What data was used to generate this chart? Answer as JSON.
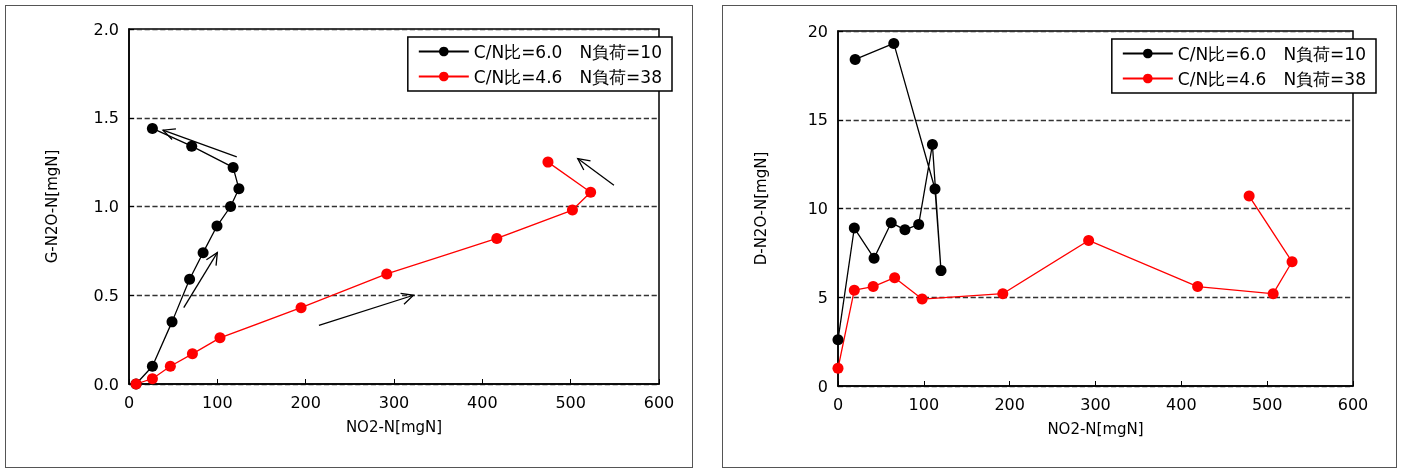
{
  "chart_data": [
    {
      "type": "line",
      "xlabel": "NO2-N[mgN]",
      "ylabel": "G-N2O-N[mgN]",
      "xlim": [
        0,
        600
      ],
      "xticks": [
        0,
        100,
        200,
        300,
        400,
        500,
        600
      ],
      "ylim": [
        0,
        2
      ],
      "yticks": [
        {
          "value": 0,
          "label": "0.0"
        },
        {
          "value": 0.5,
          "label": "0.5"
        },
        {
          "value": 1,
          "label": "1.0"
        },
        {
          "value": 1.5,
          "label": "1.5"
        },
        {
          "value": 2,
          "label": "2.0"
        }
      ],
      "grid": "y",
      "legend": "top right",
      "marker": "circle",
      "series": [
        {
          "name": "C/N比=6.0　N負荷=10",
          "color": "#000000",
          "x": [
            8,
            26.5,
            48.7,
            68.6,
            83.9,
            99.6,
            115,
            124.4,
            117.9,
            71,
            26.5
          ],
          "values": [
            0,
            0.1,
            0.35,
            0.59,
            0.74,
            0.89,
            1.0,
            1.1,
            1.22,
            1.34,
            1.44
          ]
        },
        {
          "name": "C/N比=4.6　N負荷=38",
          "color": "#ff0000",
          "x": [
            8,
            26.5,
            46.8,
            71.8,
            103,
            194.8,
            291.8,
            416.4,
            502,
            522.6,
            474.3
          ],
          "values": [
            0,
            0.03,
            0.1,
            0.17,
            0.26,
            0.43,
            0.62,
            0.82,
            0.98,
            1.08,
            1.25
          ]
        }
      ]
    },
    {
      "type": "line",
      "xlabel": "NO2-N[mgN]",
      "ylabel": "D-N2O-N[mgN]",
      "xlim": [
        0,
        600
      ],
      "xticks": [
        0,
        100,
        200,
        300,
        400,
        500,
        600
      ],
      "ylim": [
        0,
        20
      ],
      "yticks": [
        0,
        5,
        10,
        15,
        20
      ],
      "grid": "y",
      "legend": "top right",
      "marker": "circle",
      "series": [
        {
          "name": "C/N比=6.0　N負荷=10",
          "color": "#000000",
          "x": [
            0,
            19,
            42,
            62,
            78,
            94,
            110,
            120,
            113,
            65,
            20
          ],
          "values": [
            2.6,
            8.9,
            7.2,
            9.2,
            8.8,
            9.1,
            13.6,
            6.5,
            11.1,
            19.3,
            18.4
          ]
        },
        {
          "name": "C/N比=4.6　N負荷=38",
          "color": "#ff0000",
          "x": [
            0,
            19,
            41,
            66,
            98,
            192,
            292,
            419,
            507,
            529,
            479
          ],
          "values": [
            1.0,
            5.4,
            5.6,
            6.1,
            4.9,
            5.2,
            8.2,
            5.6,
            5.2,
            7.0,
            10.7
          ]
        }
      ]
    }
  ]
}
